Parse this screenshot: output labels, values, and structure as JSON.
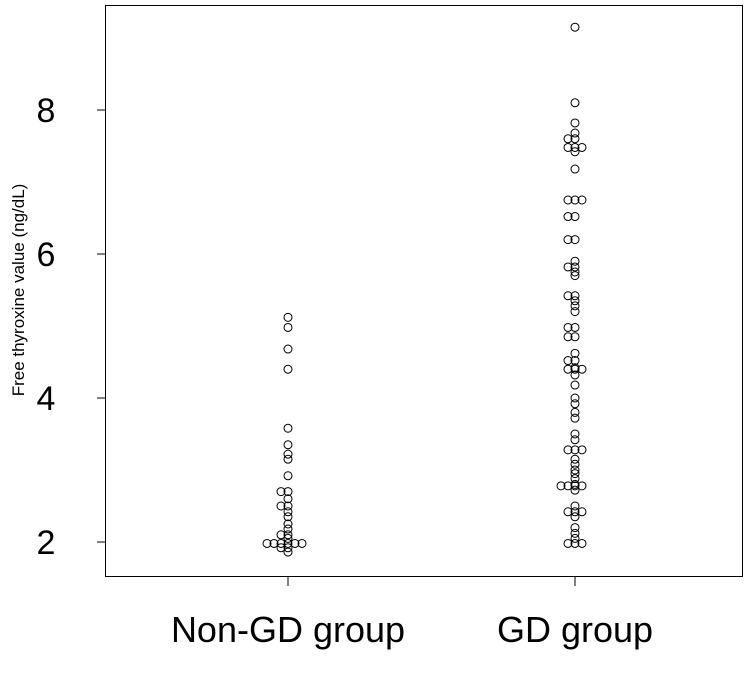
{
  "chart_data": {
    "type": "scatter",
    "subtype": "strip",
    "title": "",
    "xlabel": "",
    "ylabel": "Free thyroxine value (ng/dL)",
    "ylim": [
      1.6,
      9.5
    ],
    "yticks": [
      2,
      4,
      6,
      8
    ],
    "yticklabels": [
      "2",
      "4",
      "6",
      "8"
    ],
    "categories": [
      "Non-GD group",
      "GD group"
    ],
    "grid": false,
    "series": [
      {
        "name": "Non-GD group",
        "values": [
          5.12,
          4.98,
          4.68,
          4.4,
          3.58,
          3.35,
          3.22,
          3.15,
          2.92,
          2.7,
          2.7,
          2.6,
          2.5,
          2.5,
          2.42,
          2.35,
          2.25,
          2.18,
          2.1,
          2.1,
          2.05,
          1.98,
          1.98,
          1.98,
          1.98,
          1.98,
          1.98,
          1.92,
          1.92,
          1.86
        ]
      },
      {
        "name": "GD group",
        "values": [
          9.15,
          8.1,
          7.82,
          7.68,
          7.6,
          7.6,
          7.48,
          7.48,
          7.48,
          7.42,
          7.18,
          6.75,
          6.75,
          6.75,
          6.52,
          6.52,
          6.2,
          6.2,
          5.9,
          5.82,
          5.82,
          5.75,
          5.7,
          5.42,
          5.42,
          5.35,
          5.28,
          5.2,
          4.98,
          4.98,
          4.85,
          4.85,
          4.62,
          4.52,
          4.52,
          4.42,
          4.4,
          4.4,
          4.4,
          4.32,
          4.18,
          4.0,
          3.92,
          3.8,
          3.72,
          3.5,
          3.42,
          3.28,
          3.28,
          3.28,
          3.15,
          3.08,
          3.0,
          2.95,
          2.88,
          2.8,
          2.78,
          2.78,
          2.78,
          2.78,
          2.72,
          2.5,
          2.42,
          2.42,
          2.42,
          2.35,
          2.2,
          2.12,
          2.05,
          1.98,
          1.98,
          1.98
        ]
      }
    ]
  }
}
